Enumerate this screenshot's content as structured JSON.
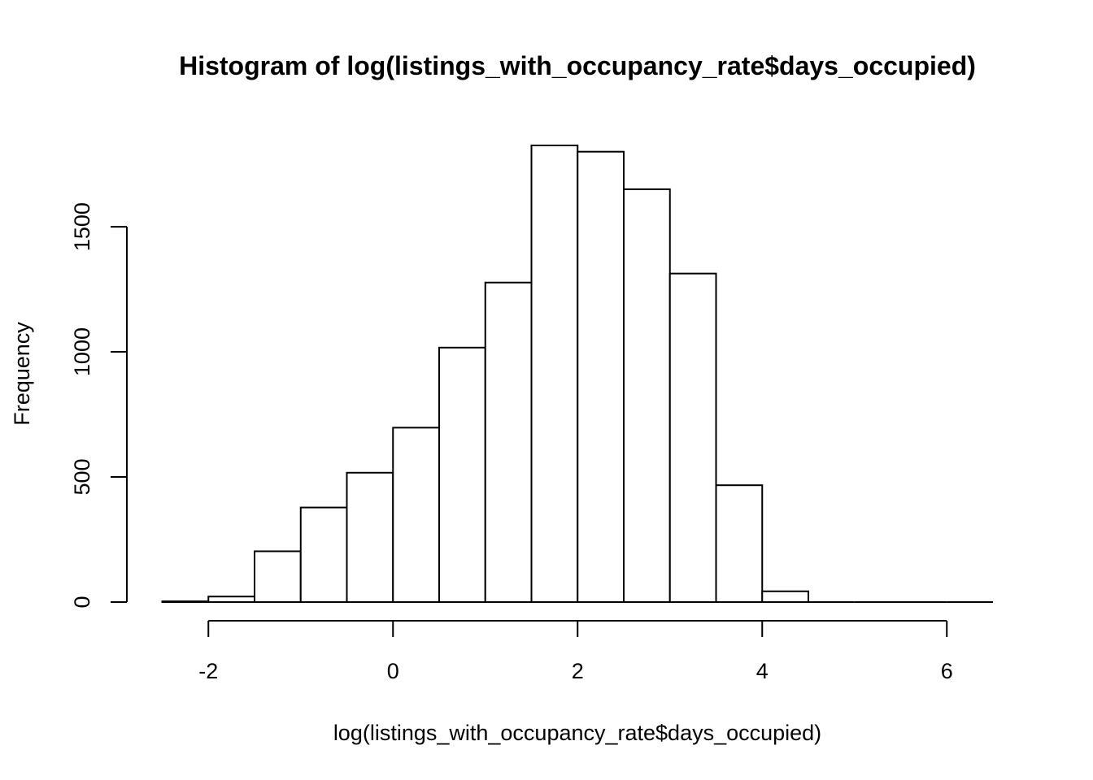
{
  "chart_data": {
    "type": "bar",
    "title": "Histogram of log(listings_with_occupancy_rate$days_occupied)",
    "xlabel": "log(listings_with_occupancy_rate$days_occupied)",
    "ylabel": "Frequency",
    "bin_edges": [
      -2.5,
      -2,
      -1.5,
      -1,
      -0.5,
      0,
      0.5,
      1,
      1.5,
      2,
      2.5,
      3,
      3.5,
      4,
      4.5,
      5,
      5.5,
      6,
      6.5
    ],
    "values": [
      3,
      22,
      203,
      378,
      517,
      697,
      1017,
      1277,
      1825,
      1800,
      1650,
      1313,
      467,
      43,
      0,
      0,
      0,
      0
    ],
    "xlim": [
      -2.5,
      6.5
    ],
    "ylim": [
      0,
      1825
    ],
    "x_ticks": [
      -2,
      0,
      2,
      4,
      6
    ],
    "x_tick_labels": [
      "-2",
      "0",
      "2",
      "4",
      "6"
    ],
    "y_ticks": [
      0,
      500,
      1000,
      1500
    ],
    "y_tick_labels": [
      "0",
      "500",
      "1000",
      "1500"
    ],
    "bar_fill": "#ffffff",
    "bar_stroke": "#000000"
  }
}
